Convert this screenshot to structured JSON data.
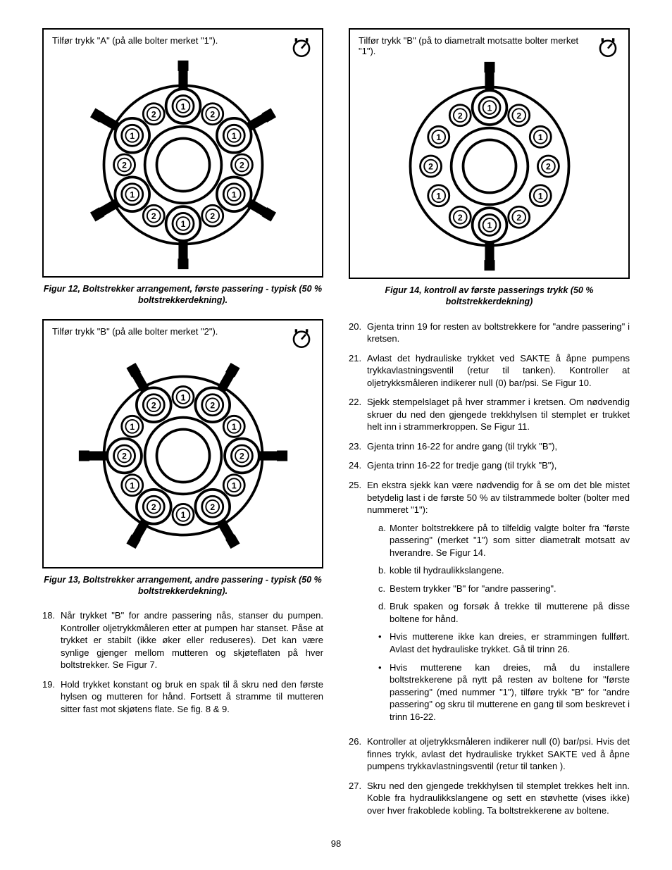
{
  "page_number": "98",
  "colors": {
    "text": "#000000",
    "bg": "#ffffff",
    "stroke": "#000000"
  },
  "figures": {
    "fig12": {
      "label": "Tilfør trykk \"A\" (på alle bolter merket \"1\").",
      "caption": "Figur 12, Boltstrekker arrangement, første passering - typisk (50 % boltstrekkerdekning).",
      "inner_positions": [
        "1",
        "1",
        "1",
        "1",
        "1",
        "1"
      ],
      "outer_positions": [
        "2",
        "2",
        "2",
        "2",
        "2",
        "2"
      ],
      "highlight": "1"
    },
    "fig13": {
      "label": "Tilfør trykk \"B\" (på alle bolter merket \"2\").",
      "caption": "Figur 13, Boltstrekker arrangement, andre passering - typisk (50 % boltstrekkerdekning).",
      "inner_positions": [
        "1",
        "1",
        "1",
        "1",
        "1",
        "1"
      ],
      "outer_positions": [
        "2",
        "2",
        "2",
        "2",
        "2",
        "2"
      ],
      "highlight": "2"
    },
    "fig14": {
      "label": "Tilfør trykk \"B\" (på to diametralt motsatte bolter merket \"1\").",
      "caption": "Figur 14, kontroll av første passerings trykk (50 % boltstrekkerdekning)",
      "inner_positions": [
        "1",
        "1",
        "1",
        "1",
        "1",
        "1"
      ],
      "outer_positions": [
        "2",
        "2",
        "2",
        "2",
        "2",
        "2"
      ],
      "highlight_idx": [
        0,
        3
      ]
    }
  },
  "left_steps": [
    {
      "n": "18.",
      "t": "Når trykket \"B\" for andre passering nås, stanser du pumpen. Kontroller oljetrykkmåleren etter at pumpen har stanset. Påse at trykket er stabilt (ikke øker eller reduseres). Det kan være synlige gjenger mellom mutteren og skjøteflaten på hver boltstrekker. Se Figur 7."
    },
    {
      "n": "19.",
      "t": "Hold trykket konstant og bruk en spak til å skru ned den første hylsen og mutteren for hånd. Fortsett å stramme til mutteren sitter fast mot skjøtens flate. Se fig. 8 & 9."
    }
  ],
  "right_steps": [
    {
      "n": "20.",
      "t": "Gjenta trinn 19 for resten av boltstrekkere  for \"andre passering\" i kretsen."
    },
    {
      "n": "21.",
      "t": "Avlast det hydrauliske trykket ved SAKTE å åpne pumpens trykkavlastningsventil (retur til tanken). Kontroller at oljetrykksmåleren indikerer null (0) bar/psi. Se Figur 10."
    },
    {
      "n": "22.",
      "t": "Sjekk stempelslaget på hver strammer i kretsen. Om nødvendig skruer du ned den gjengede trekkhylsen til stemplet er trukket helt inn i strammerkroppen. Se Figur 11."
    },
    {
      "n": "23.",
      "t": "Gjenta trinn 16-22 for andre gang (til trykk \"B\"),"
    },
    {
      "n": "24.",
      "t": "Gjenta trinn 16-22 for tredje gang (til trykk \"B\"),"
    },
    {
      "n": "25.",
      "t": "En ekstra sjekk kan være nødvendig for å se om det ble mistet betydelig last i de første 50 % av tilstrammede bolter (bolter med nummeret \"1\"):",
      "sub": [
        {
          "mk": "a.",
          "t": "Monter boltstrekkere på to tilfeldig valgte  bolter fra \"første passering\" (merket \"1\") som sitter diametralt motsatt av hverandre. Se Figur 14."
        },
        {
          "mk": "b.",
          "t": "koble til hydraulikkslangene."
        },
        {
          "mk": "c.",
          "t": "Bestem trykker \"B\" for \"andre passering\"."
        },
        {
          "mk": "d.",
          "t": "Bruk spaken og forsøk å trekke til mutterene på disse boltene for hånd."
        },
        {
          "mk": "•",
          "t": "Hvis mutterene ikke kan dreies, er strammingen fullført. Avlast det hydrauliske trykket. Gå til trinn 26."
        },
        {
          "mk": "•",
          "t": "Hvis mutterene kan dreies, må du installere boltstrekkerene på nytt på resten av boltene for \"første passering\" (med nummer \"1\"), tilføre trykk \"B\" for \"andre passering\" og skru til mutterene en gang til som beskrevet i trinn 16-22."
        }
      ]
    },
    {
      "n": "26.",
      "t": "Kontroller at oljetrykksmåleren indikerer null (0) bar/psi. Hvis det finnes trykk, avlast det hydrauliske trykket SAKTE ved å åpne pumpens trykkavlastningsventil (retur til tanken )."
    },
    {
      "n": "27.",
      "t": "Skru ned den gjengede trekkhylsen til stemplet trekkes helt inn. Koble fra hydraulikkslangene og sett en støvhette (vises ikke) over hver frakoblede kobling. Ta boltstrekkerene av boltene."
    }
  ]
}
